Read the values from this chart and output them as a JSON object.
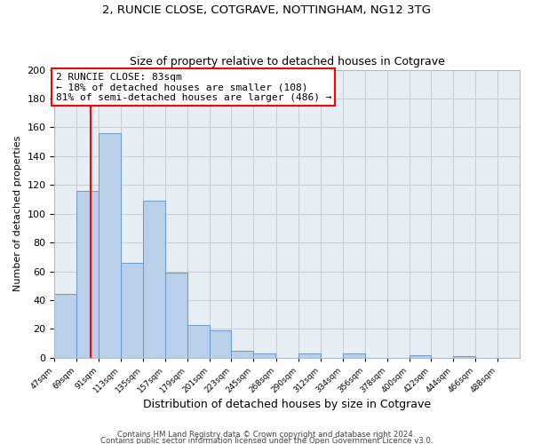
{
  "title": "2, RUNCIE CLOSE, COTGRAVE, NOTTINGHAM, NG12 3TG",
  "subtitle": "Size of property relative to detached houses in Cotgrave",
  "xlabel": "Distribution of detached houses by size in Cotgrave",
  "ylabel": "Number of detached properties",
  "bar_color": "#b8d0ea",
  "bar_edge_color": "#6699cc",
  "bg_color": "#e8eef6",
  "grid_color": "#c8cdd8",
  "annotation_text": "2 RUNCIE CLOSE: 83sqm\n← 18% of detached houses are smaller (108)\n81% of semi-detached houses are larger (486) →",
  "red_line_x": 83,
  "bins": [
    47,
    69,
    91,
    113,
    135,
    157,
    179,
    201,
    223,
    245,
    268,
    290,
    312,
    334,
    356,
    378,
    400,
    422,
    444,
    466,
    488
  ],
  "heights": [
    44,
    116,
    156,
    66,
    109,
    59,
    23,
    19,
    5,
    3,
    0,
    3,
    0,
    3,
    0,
    0,
    2,
    0,
    1,
    0
  ],
  "ylim": [
    0,
    200
  ],
  "yticks": [
    0,
    20,
    40,
    60,
    80,
    100,
    120,
    140,
    160,
    180,
    200
  ],
  "footer1": "Contains HM Land Registry data © Crown copyright and database right 2024.",
  "footer2": "Contains public sector information licensed under the Open Government Licence v3.0."
}
